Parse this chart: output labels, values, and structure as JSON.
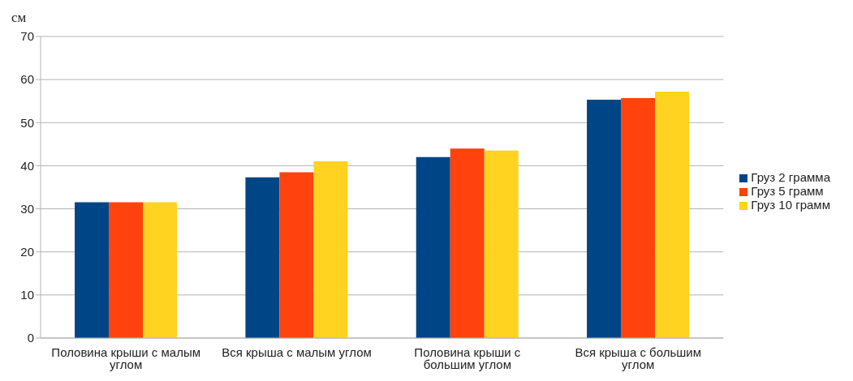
{
  "chart_data": {
    "type": "bar",
    "ylabel": "см",
    "categories": [
      "Половина крыши с малым углом",
      "Вся крыша с малым углом",
      "Половина крыши с большим углом",
      "Вся крыша с большим углом"
    ],
    "series": [
      {
        "name": "Груз 2 грамма",
        "color": "#004586",
        "values": [
          31.5,
          37.3,
          42.0,
          55.3
        ]
      },
      {
        "name": "Груз 5 грамм",
        "color": "#ff420e",
        "values": [
          31.5,
          38.5,
          44.0,
          55.7
        ]
      },
      {
        "name": "Груз 10 грамм",
        "color": "#ffd320",
        "values": [
          31.5,
          41.0,
          43.5,
          57.2
        ]
      }
    ],
    "ylim": [
      0,
      70
    ],
    "yticks": [
      0,
      10,
      20,
      30,
      40,
      50,
      60,
      70
    ],
    "grid": "y",
    "legend": "right"
  }
}
